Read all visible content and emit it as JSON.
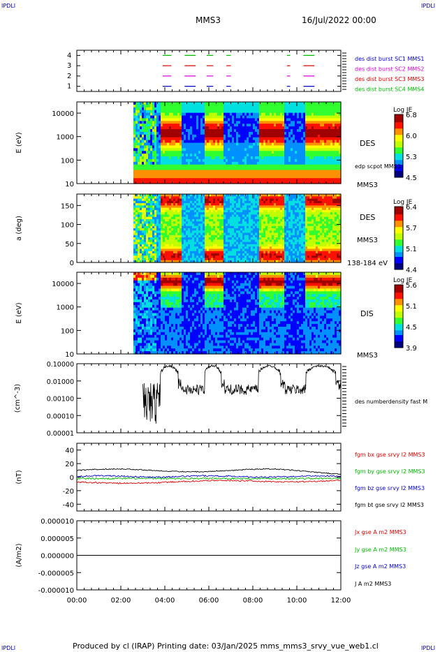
{
  "corners": {
    "top_left": "IPDLI",
    "top_right": "IPDLI",
    "bottom_left": "IPDLI",
    "bottom_right": "IPDLI"
  },
  "header": {
    "spacecraft": "MMS3",
    "date": "16/Jul/2022 00:00"
  },
  "footer": {
    "text": "Produced by cl (IRAP)   Printing date: 03/Jan/2025   mms_mms3_srvy_vue_web1.cl"
  },
  "colors": {
    "red": "#e00000",
    "green": "#00bb00",
    "blue": "#0000cc",
    "magenta": "#dd00dd",
    "black": "#000000",
    "cmap": [
      "#000080",
      "#0000ff",
      "#0090ff",
      "#00e0e0",
      "#30ff30",
      "#c0ff00",
      "#ffff00",
      "#ff9000",
      "#ff1000",
      "#a00000"
    ]
  },
  "chart_data": [
    {
      "id": "burst",
      "type": "line",
      "ylim": [
        0.5,
        4.5
      ],
      "yticks": [
        "1",
        "2",
        "3",
        "4"
      ],
      "legend": [
        {
          "name": "des dist burst SC1 MMS1",
          "color": "#0000cc"
        },
        {
          "name": "des dist burst SC2 MMS2",
          "color": "#dd00dd"
        },
        {
          "name": "des dist burst SC3 MMS3",
          "color": "#e00000"
        },
        {
          "name": "des dist burst SC4 MMS4",
          "color": "#00bb00"
        }
      ],
      "intervals_hours": [
        [
          3.9,
          4.3
        ],
        [
          4.9,
          5.4
        ],
        [
          5.9,
          6.2
        ],
        [
          6.8,
          7.0
        ],
        [
          9.55,
          9.7
        ],
        [
          10.3,
          10.8
        ]
      ]
    },
    {
      "id": "des_energy",
      "type": "heatmap",
      "ylabel": "E (eV)",
      "yscale": "log",
      "ylim": [
        10,
        30000
      ],
      "yticks": [
        "10",
        "100",
        "1000",
        "10000"
      ],
      "right_labels": [
        "DES",
        "edp scpot MMS3",
        "MMS3"
      ],
      "colorbar": {
        "title": "Log JE",
        "ticks": [
          "6.8",
          "6.0",
          "5.3",
          "4.5"
        ],
        "range": [
          4.5,
          6.8
        ]
      },
      "data_start_hour": 2.6
    },
    {
      "id": "des_pitch",
      "type": "heatmap",
      "ylabel": "a (deg)",
      "ylim": [
        0,
        180
      ],
      "yticks": [
        "0",
        "50",
        "100",
        "150"
      ],
      "right_labels": [
        "DES",
        "MMS3",
        "138-184 eV"
      ],
      "colorbar": {
        "title": "Log JE",
        "ticks": [
          "6.4",
          "5.7",
          "5.1",
          "4.4"
        ],
        "range": [
          4.4,
          6.4
        ]
      },
      "data_start_hour": 2.6
    },
    {
      "id": "dis_energy",
      "type": "heatmap",
      "ylabel": "E (eV)",
      "yscale": "log",
      "ylim": [
        10,
        30000
      ],
      "yticks": [
        "10",
        "100",
        "1000",
        "10000"
      ],
      "right_labels": [
        "DIS",
        "MMS3"
      ],
      "colorbar": {
        "title": "Log JE",
        "ticks": [
          "5.6",
          "5.1",
          "4.5",
          "3.9"
        ],
        "range": [
          3.9,
          5.6
        ]
      },
      "data_start_hour": 2.6
    },
    {
      "id": "density",
      "type": "line",
      "ylabel": "(cm^-3)",
      "yscale": "log",
      "ylim": [
        1e-05,
        0.1
      ],
      "yticks": [
        "0.00001",
        "0.00010",
        "0.00100",
        "0.01000",
        "0.10000"
      ],
      "series": [
        {
          "name": "des numberdensity fast M",
          "color": "#000000"
        }
      ]
    },
    {
      "id": "bfield",
      "type": "line",
      "ylabel": "(nT)",
      "ylim": [
        -50,
        50
      ],
      "yticks": [
        "-40",
        "-20",
        "0",
        "20",
        "40"
      ],
      "series": [
        {
          "name": "fgm bx gse srvy l2 MMS3",
          "color": "#e00000"
        },
        {
          "name": "fgm by gse srvy l2 MMS3",
          "color": "#00bb00"
        },
        {
          "name": "fgm bz gse srvy l2 MMS3",
          "color": "#0000cc"
        },
        {
          "name": "fgm bt gse srvy l2 MMS3",
          "color": "#000000"
        }
      ]
    },
    {
      "id": "current",
      "type": "line",
      "ylabel": "(A/m2)",
      "ylim": [
        -1e-05,
        1e-05
      ],
      "yticks": [
        "-0.000010",
        "-0.000005",
        "0.000000",
        "0.000005",
        "0.000010"
      ],
      "series": [
        {
          "name": "Jx gse A m2 MMS3",
          "color": "#e00000"
        },
        {
          "name": "Jy gse A m2 MMS3",
          "color": "#00bb00"
        },
        {
          "name": "Jz gse A m2 MMS3",
          "color": "#0000cc"
        },
        {
          "name": "J A m2 MMS3",
          "color": "#000000"
        }
      ],
      "xticks": [
        "00:00",
        "02:00",
        "04:00",
        "06:00",
        "08:00",
        "10:00",
        "12:00"
      ],
      "xlim_hours": [
        0,
        12
      ]
    }
  ]
}
